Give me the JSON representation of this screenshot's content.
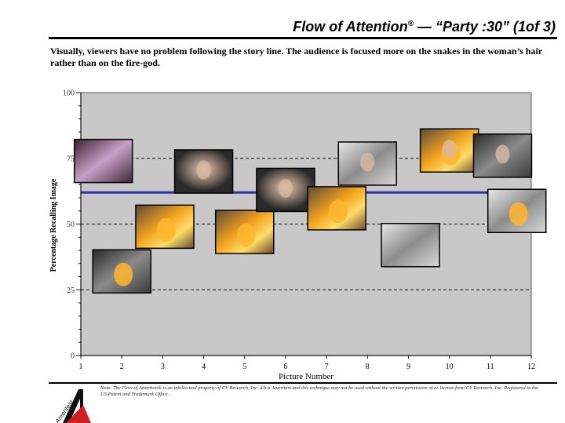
{
  "header": {
    "title_main": "Flow of Attention",
    "title_mark": "®",
    "title_rest": " — “Party :30” (1of 3)"
  },
  "subtitle": "Visually, viewers have no problem following the story line. The audience is focused more on the snakes in the woman’s hair rather than on the fire-god.",
  "chart_data": {
    "type": "scatter",
    "xlabel": "Picture Number",
    "ylabel": "Percentage Recalling Image",
    "xlim": [
      1,
      12
    ],
    "ylim": [
      0,
      100
    ],
    "x_ticks": [
      1,
      2,
      3,
      4,
      5,
      6,
      7,
      8,
      9,
      10,
      11,
      12
    ],
    "y_ticks": [
      0,
      25,
      50,
      75,
      100
    ],
    "dashed_gridlines": [
      25,
      50,
      75
    ],
    "average_line": 62,
    "average_line_color": "#2b35a8",
    "plot_background": "#c8c8c8",
    "marker": "thumbnail image",
    "points": [
      {
        "x": 1.55,
        "y": 74,
        "thumb": "dark-purple-logo"
      },
      {
        "x": 2.0,
        "y": 32,
        "thumb": "fire-god-scene"
      },
      {
        "x": 3.05,
        "y": 49,
        "thumb": "fire-figure"
      },
      {
        "x": 4.0,
        "y": 70,
        "thumb": "woman-snake-hair"
      },
      {
        "x": 5.0,
        "y": 47,
        "thumb": "fire-crowd"
      },
      {
        "x": 6.0,
        "y": 63,
        "thumb": "woman-snake-hair-closeup"
      },
      {
        "x": 7.25,
        "y": 56,
        "thumb": "fire-explosion"
      },
      {
        "x": 8.0,
        "y": 73,
        "thumb": "woman-profile"
      },
      {
        "x": 9.05,
        "y": 42,
        "thumb": "party-crowd"
      },
      {
        "x": 10.0,
        "y": 78,
        "thumb": "woman-fire"
      },
      {
        "x": 11.3,
        "y": 76,
        "thumb": "snake-hair-closeup"
      },
      {
        "x": 11.65,
        "y": 55,
        "thumb": "fire-figure-party"
      }
    ]
  },
  "footer": {
    "note": "Note: The Flow of Attention® is an intellectual property of CY Research, Inc. d/b/a Ameritest and this technique may not be used without the written permission of or license from CY Research, Inc. Registered in the US Patent and Trademark Office.",
    "logo_text": "Ameritest"
  },
  "colors": {
    "fire": "#f0a020",
    "dark_photo": "#3a3a3a",
    "logo_red": "#d0201e"
  }
}
